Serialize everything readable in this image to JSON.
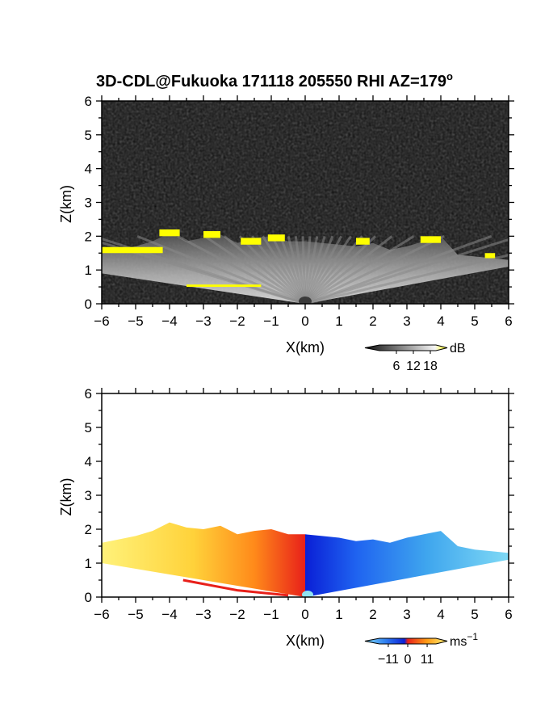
{
  "figure": {
    "title": "3D-CDL@Fukuoka 171118 205550 RHI AZ=179",
    "title_degree": "o"
  },
  "colors": {
    "intensity_dark": "#151515",
    "intensity_light": "#f0f0f0",
    "intensity_high": "#ffff00",
    "velocity_neg_strong": "#0a1fd6",
    "velocity_neg_weak": "#6ec8ec",
    "velocity_pos_strong": "#e8201a",
    "velocity_pos_weak": "#fff27a"
  },
  "chart_data": [
    {
      "type": "heatmap",
      "panel": "intensity",
      "xlabel": "X(km)",
      "ylabel": "Z(km)",
      "xlim": [
        -6,
        6
      ],
      "ylim": [
        0,
        6
      ],
      "xticks": [
        -6,
        -5,
        -4,
        -3,
        -2,
        -1,
        0,
        1,
        2,
        3,
        4,
        5,
        6
      ],
      "yticks": [
        0,
        1,
        2,
        3,
        4,
        5,
        6
      ],
      "xtick_labels": [
        "−6",
        "−5",
        "−4",
        "−3",
        "−2",
        "−1",
        "0",
        "1",
        "2",
        "3",
        "4",
        "5",
        "6"
      ],
      "ytick_labels": [
        "0",
        "1",
        "2",
        "3",
        "4",
        "5",
        "6"
      ],
      "colorbar": {
        "unit": "dB",
        "ticks": [
          6,
          12,
          18
        ],
        "tick_labels": [
          "6",
          "12",
          "18"
        ],
        "range": [
          0,
          20
        ]
      },
      "echo_top_profile": {
        "x": [
          -6,
          -5.5,
          -5,
          -4.5,
          -4,
          -3.5,
          -3,
          -2.5,
          -2,
          -1.5,
          -1,
          -0.5,
          0,
          0.5,
          1,
          1.5,
          2,
          2.5,
          3,
          3.5,
          4,
          4.5,
          5,
          5.5,
          6
        ],
        "z": [
          1.55,
          1.6,
          1.7,
          1.85,
          2.1,
          1.85,
          1.95,
          2.05,
          1.8,
          1.95,
          2.0,
          1.85,
          1.85,
          1.8,
          1.75,
          1.7,
          1.8,
          1.6,
          1.7,
          1.85,
          2.0,
          1.45,
          1.4,
          1.35,
          1.3
        ]
      },
      "high_intensity_regions_km": [
        [
          -6,
          1.5,
          1.8,
          0.18
        ],
        [
          -4.3,
          2.0,
          0.6,
          0.2
        ],
        [
          -3.0,
          1.95,
          0.5,
          0.2
        ],
        [
          -1.9,
          1.75,
          0.6,
          0.2
        ],
        [
          -1.1,
          1.85,
          0.5,
          0.2
        ],
        [
          1.5,
          1.75,
          0.4,
          0.2
        ],
        [
          3.4,
          1.8,
          0.6,
          0.2
        ],
        [
          -3.5,
          0.5,
          2.2,
          0.07
        ],
        [
          5.3,
          1.35,
          0.3,
          0.15
        ]
      ]
    },
    {
      "type": "heatmap",
      "panel": "velocity",
      "xlabel": "X(km)",
      "ylabel": "Z(km)",
      "xlim": [
        -6,
        6
      ],
      "ylim": [
        0,
        6
      ],
      "xticks": [
        -6,
        -5,
        -4,
        -3,
        -2,
        -1,
        0,
        1,
        2,
        3,
        4,
        5,
        6
      ],
      "yticks": [
        0,
        1,
        2,
        3,
        4,
        5,
        6
      ],
      "xtick_labels": [
        "−6",
        "−5",
        "−4",
        "−3",
        "−2",
        "−1",
        "0",
        "1",
        "2",
        "3",
        "4",
        "5",
        "6"
      ],
      "ytick_labels": [
        "0",
        "1",
        "2",
        "3",
        "4",
        "5",
        "6"
      ],
      "colorbar": {
        "unit": "ms",
        "unit_superscript": "−1",
        "ticks": [
          -11,
          0,
          11
        ],
        "tick_labels": [
          "−11",
          "0",
          "11"
        ],
        "range": [
          -16,
          16
        ]
      },
      "echo_top_profile": {
        "x": [
          -6,
          -5.5,
          -5,
          -4.5,
          -4,
          -3.5,
          -3,
          -2.5,
          -2,
          -1.5,
          -1,
          -0.5,
          0,
          0.5,
          1,
          1.5,
          2,
          2.5,
          3,
          3.5,
          4,
          4.5,
          5,
          5.5,
          6
        ],
        "z": [
          1.6,
          1.7,
          1.8,
          1.95,
          2.2,
          2.05,
          2.0,
          2.1,
          1.85,
          1.95,
          2.0,
          1.85,
          1.85,
          1.8,
          1.75,
          1.65,
          1.7,
          1.6,
          1.75,
          1.85,
          1.95,
          1.5,
          1.4,
          1.35,
          1.3
        ]
      }
    }
  ]
}
